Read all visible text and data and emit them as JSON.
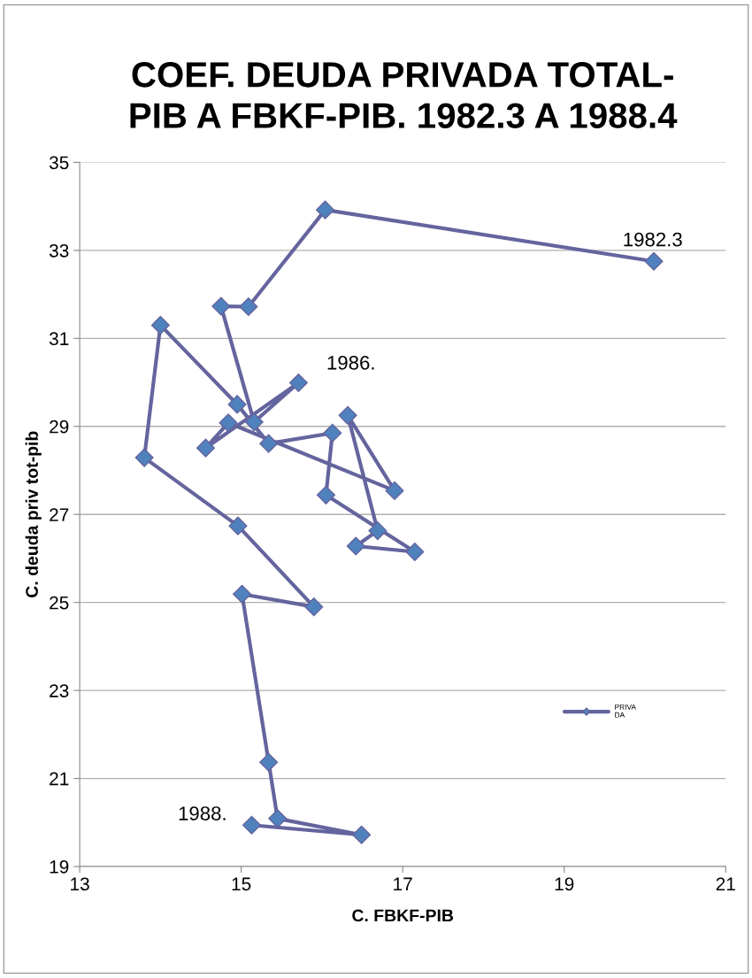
{
  "chart_data": {
    "type": "line",
    "title": "COEF. DEUDA PRIVADA TOTAL-\nPIB A FBKF-PIB. 1982.3 A 1988.4",
    "xlabel": "C. FBKF-PIB",
    "ylabel": "C. deuda priv tot-pib",
    "series": [
      {
        "name": "PRIVA\nDA",
        "color": "#64649e",
        "x": [
          20.11,
          16.04,
          15.09,
          14.75,
          15.16,
          15.71,
          14.56,
          14.84,
          16.9,
          16.32,
          16.69,
          16.42,
          17.15,
          16.05,
          16.13,
          15.34,
          14.95,
          14.0,
          13.8,
          14.96,
          15.9,
          15.01,
          15.34,
          15.45,
          16.49,
          15.13
        ],
        "values": [
          32.75,
          33.92,
          31.72,
          31.73,
          29.1,
          29.99,
          28.51,
          29.08,
          27.54,
          29.25,
          26.63,
          26.28,
          26.15,
          27.44,
          28.85,
          28.61,
          29.5,
          31.3,
          28.29,
          26.74,
          24.9,
          25.19,
          21.37,
          20.09,
          19.72,
          19.94
        ]
      }
    ],
    "xlim": [
      13,
      21
    ],
    "xticks": [
      13,
      15,
      17,
      19,
      21
    ],
    "ylim": [
      19,
      35
    ],
    "yticks": [
      19,
      21,
      23,
      25,
      27,
      29,
      31,
      33,
      35
    ],
    "grid": "y",
    "legend": "right",
    "marker": "diamond",
    "line_style": "solid",
    "annotations": [
      "1982.3",
      "1986.",
      "1988."
    ]
  }
}
